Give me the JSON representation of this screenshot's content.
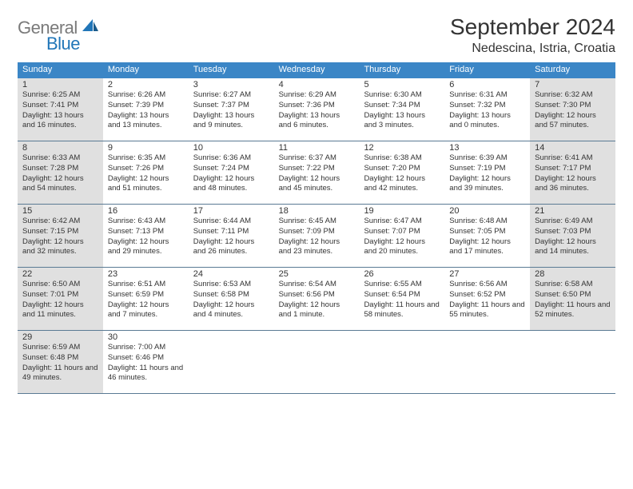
{
  "logo": {
    "general": "General",
    "blue": "Blue"
  },
  "title": "September 2024",
  "location": "Nedescina, Istria, Croatia",
  "colors": {
    "header_bg": "#3b86c6",
    "header_text": "#ffffff",
    "shaded_bg": "#e0e0e0",
    "border": "#5a7a94",
    "logo_gray": "#7a7a7a",
    "logo_blue": "#2176b8"
  },
  "weekdays": [
    "Sunday",
    "Monday",
    "Tuesday",
    "Wednesday",
    "Thursday",
    "Friday",
    "Saturday"
  ],
  "weeks": [
    [
      {
        "n": "1",
        "shaded": true,
        "sunrise": "6:25 AM",
        "sunset": "7:41 PM",
        "dl": "13 hours and 16 minutes."
      },
      {
        "n": "2",
        "shaded": false,
        "sunrise": "6:26 AM",
        "sunset": "7:39 PM",
        "dl": "13 hours and 13 minutes."
      },
      {
        "n": "3",
        "shaded": false,
        "sunrise": "6:27 AM",
        "sunset": "7:37 PM",
        "dl": "13 hours and 9 minutes."
      },
      {
        "n": "4",
        "shaded": false,
        "sunrise": "6:29 AM",
        "sunset": "7:36 PM",
        "dl": "13 hours and 6 minutes."
      },
      {
        "n": "5",
        "shaded": false,
        "sunrise": "6:30 AM",
        "sunset": "7:34 PM",
        "dl": "13 hours and 3 minutes."
      },
      {
        "n": "6",
        "shaded": false,
        "sunrise": "6:31 AM",
        "sunset": "7:32 PM",
        "dl": "13 hours and 0 minutes."
      },
      {
        "n": "7",
        "shaded": true,
        "sunrise": "6:32 AM",
        "sunset": "7:30 PM",
        "dl": "12 hours and 57 minutes."
      }
    ],
    [
      {
        "n": "8",
        "shaded": true,
        "sunrise": "6:33 AM",
        "sunset": "7:28 PM",
        "dl": "12 hours and 54 minutes."
      },
      {
        "n": "9",
        "shaded": false,
        "sunrise": "6:35 AM",
        "sunset": "7:26 PM",
        "dl": "12 hours and 51 minutes."
      },
      {
        "n": "10",
        "shaded": false,
        "sunrise": "6:36 AM",
        "sunset": "7:24 PM",
        "dl": "12 hours and 48 minutes."
      },
      {
        "n": "11",
        "shaded": false,
        "sunrise": "6:37 AM",
        "sunset": "7:22 PM",
        "dl": "12 hours and 45 minutes."
      },
      {
        "n": "12",
        "shaded": false,
        "sunrise": "6:38 AM",
        "sunset": "7:20 PM",
        "dl": "12 hours and 42 minutes."
      },
      {
        "n": "13",
        "shaded": false,
        "sunrise": "6:39 AM",
        "sunset": "7:19 PM",
        "dl": "12 hours and 39 minutes."
      },
      {
        "n": "14",
        "shaded": true,
        "sunrise": "6:41 AM",
        "sunset": "7:17 PM",
        "dl": "12 hours and 36 minutes."
      }
    ],
    [
      {
        "n": "15",
        "shaded": true,
        "sunrise": "6:42 AM",
        "sunset": "7:15 PM",
        "dl": "12 hours and 32 minutes."
      },
      {
        "n": "16",
        "shaded": false,
        "sunrise": "6:43 AM",
        "sunset": "7:13 PM",
        "dl": "12 hours and 29 minutes."
      },
      {
        "n": "17",
        "shaded": false,
        "sunrise": "6:44 AM",
        "sunset": "7:11 PM",
        "dl": "12 hours and 26 minutes."
      },
      {
        "n": "18",
        "shaded": false,
        "sunrise": "6:45 AM",
        "sunset": "7:09 PM",
        "dl": "12 hours and 23 minutes."
      },
      {
        "n": "19",
        "shaded": false,
        "sunrise": "6:47 AM",
        "sunset": "7:07 PM",
        "dl": "12 hours and 20 minutes."
      },
      {
        "n": "20",
        "shaded": false,
        "sunrise": "6:48 AM",
        "sunset": "7:05 PM",
        "dl": "12 hours and 17 minutes."
      },
      {
        "n": "21",
        "shaded": true,
        "sunrise": "6:49 AM",
        "sunset": "7:03 PM",
        "dl": "12 hours and 14 minutes."
      }
    ],
    [
      {
        "n": "22",
        "shaded": true,
        "sunrise": "6:50 AM",
        "sunset": "7:01 PM",
        "dl": "12 hours and 11 minutes."
      },
      {
        "n": "23",
        "shaded": false,
        "sunrise": "6:51 AM",
        "sunset": "6:59 PM",
        "dl": "12 hours and 7 minutes."
      },
      {
        "n": "24",
        "shaded": false,
        "sunrise": "6:53 AM",
        "sunset": "6:58 PM",
        "dl": "12 hours and 4 minutes."
      },
      {
        "n": "25",
        "shaded": false,
        "sunrise": "6:54 AM",
        "sunset": "6:56 PM",
        "dl": "12 hours and 1 minute."
      },
      {
        "n": "26",
        "shaded": false,
        "sunrise": "6:55 AM",
        "sunset": "6:54 PM",
        "dl": "11 hours and 58 minutes."
      },
      {
        "n": "27",
        "shaded": false,
        "sunrise": "6:56 AM",
        "sunset": "6:52 PM",
        "dl": "11 hours and 55 minutes."
      },
      {
        "n": "28",
        "shaded": true,
        "sunrise": "6:58 AM",
        "sunset": "6:50 PM",
        "dl": "11 hours and 52 minutes."
      }
    ],
    [
      {
        "n": "29",
        "shaded": true,
        "sunrise": "6:59 AM",
        "sunset": "6:48 PM",
        "dl": "11 hours and 49 minutes."
      },
      {
        "n": "30",
        "shaded": false,
        "sunrise": "7:00 AM",
        "sunset": "6:46 PM",
        "dl": "11 hours and 46 minutes."
      },
      {
        "n": "",
        "shaded": false,
        "empty": true
      },
      {
        "n": "",
        "shaded": false,
        "empty": true
      },
      {
        "n": "",
        "shaded": false,
        "empty": true
      },
      {
        "n": "",
        "shaded": false,
        "empty": true
      },
      {
        "n": "",
        "shaded": false,
        "empty": true
      }
    ]
  ]
}
